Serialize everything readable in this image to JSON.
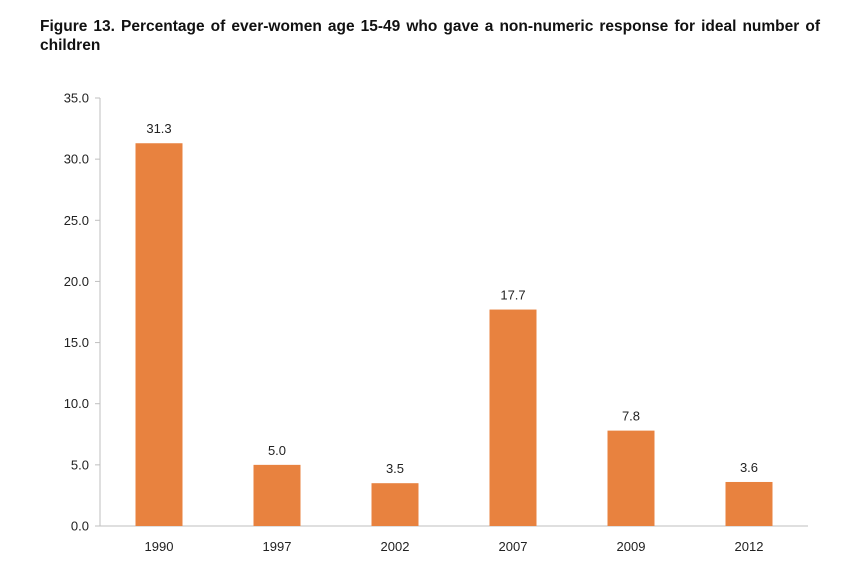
{
  "figure": {
    "title": "Figure 13. Percentage of ever-women age 15-49 who gave a non-numeric response for ideal number of children"
  },
  "chart_data": {
    "type": "bar",
    "title": "Figure 13. Percentage of ever-women age 15-49 who gave a non-numeric response for ideal number of children",
    "categories": [
      "1990",
      "1997",
      "2002",
      "2007",
      "2009",
      "2012"
    ],
    "values": [
      31.3,
      5.0,
      3.5,
      17.7,
      7.8,
      3.6
    ],
    "value_labels": [
      "31.3",
      "5.0",
      "3.5",
      "17.7",
      "7.8",
      "3.6"
    ],
    "xlabel": "",
    "ylabel": "",
    "ylim": [
      0,
      35
    ],
    "yticks": [
      0,
      5,
      10,
      15,
      20,
      25,
      30,
      35
    ],
    "ytick_labels": [
      "0.0",
      "5.0",
      "10.0",
      "15.0",
      "20.0",
      "25.0",
      "30.0",
      "35.0"
    ],
    "grid": false,
    "legend": "none",
    "bar_color": "#E8823F",
    "axis_color": "#BFBFBF"
  }
}
